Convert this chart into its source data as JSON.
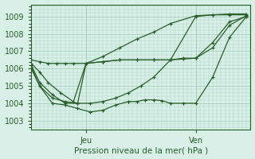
{
  "title": "Pression niveau de la mer( hPa )",
  "background_color": "#d8f0e8",
  "grid_color": "#a8cfc0",
  "line_color": "#2a5e2a",
  "ylim": [
    1002.5,
    1009.7
  ],
  "yticks": [
    1003,
    1004,
    1005,
    1006,
    1007,
    1008,
    1009
  ],
  "xlim": [
    0,
    52
  ],
  "jeu_x": 13,
  "ven_x": 39,
  "series": [
    {
      "x": [
        0,
        2,
        4,
        6,
        8,
        10,
        13,
        17,
        21,
        25,
        29,
        33,
        39,
        43,
        47,
        51
      ],
      "y": [
        1006.5,
        1006.4,
        1006.3,
        1006.3,
        1006.3,
        1006.3,
        1006.3,
        1006.7,
        1007.2,
        1007.7,
        1008.1,
        1008.6,
        1009.05,
        1009.1,
        1009.15,
        1009.15
      ]
    },
    {
      "x": [
        0,
        2,
        4,
        7,
        10,
        13,
        17,
        21,
        25,
        29,
        33,
        39,
        43,
        47,
        51
      ],
      "y": [
        1006.3,
        1005.8,
        1005.2,
        1004.6,
        1004.1,
        1006.3,
        1006.4,
        1006.5,
        1006.5,
        1006.5,
        1006.5,
        1009.0,
        1009.1,
        1009.1,
        1009.1
      ]
    },
    {
      "x": [
        0,
        2,
        5,
        8,
        11,
        14,
        17,
        20,
        23,
        26,
        29,
        33,
        36,
        39,
        43,
        47,
        51
      ],
      "y": [
        1006.2,
        1005.2,
        1004.5,
        1004.0,
        1004.0,
        1004.0,
        1004.1,
        1004.3,
        1004.6,
        1005.0,
        1005.5,
        1006.5,
        1006.55,
        1006.6,
        1007.5,
        1008.7,
        1009.0
      ]
    },
    {
      "x": [
        0,
        2,
        5,
        8,
        11,
        14,
        17,
        20,
        23,
        25,
        27,
        29,
        31,
        33,
        36,
        39,
        43,
        47,
        51
      ],
      "y": [
        1006.1,
        1005.0,
        1004.0,
        1003.9,
        1003.7,
        1003.5,
        1003.6,
        1003.9,
        1004.1,
        1004.1,
        1004.2,
        1004.2,
        1004.15,
        1004.0,
        1004.0,
        1004.0,
        1005.5,
        1007.8,
        1009.0
      ]
    },
    {
      "x": [
        0,
        2,
        5,
        8,
        11,
        13,
        17,
        21,
        25,
        29,
        33,
        36,
        39,
        43,
        47,
        51
      ],
      "y": [
        1006.0,
        1005.0,
        1004.3,
        1004.1,
        1004.0,
        1006.3,
        1006.4,
        1006.5,
        1006.5,
        1006.5,
        1006.5,
        1006.6,
        1006.6,
        1007.2,
        1008.5,
        1009.05
      ]
    }
  ]
}
